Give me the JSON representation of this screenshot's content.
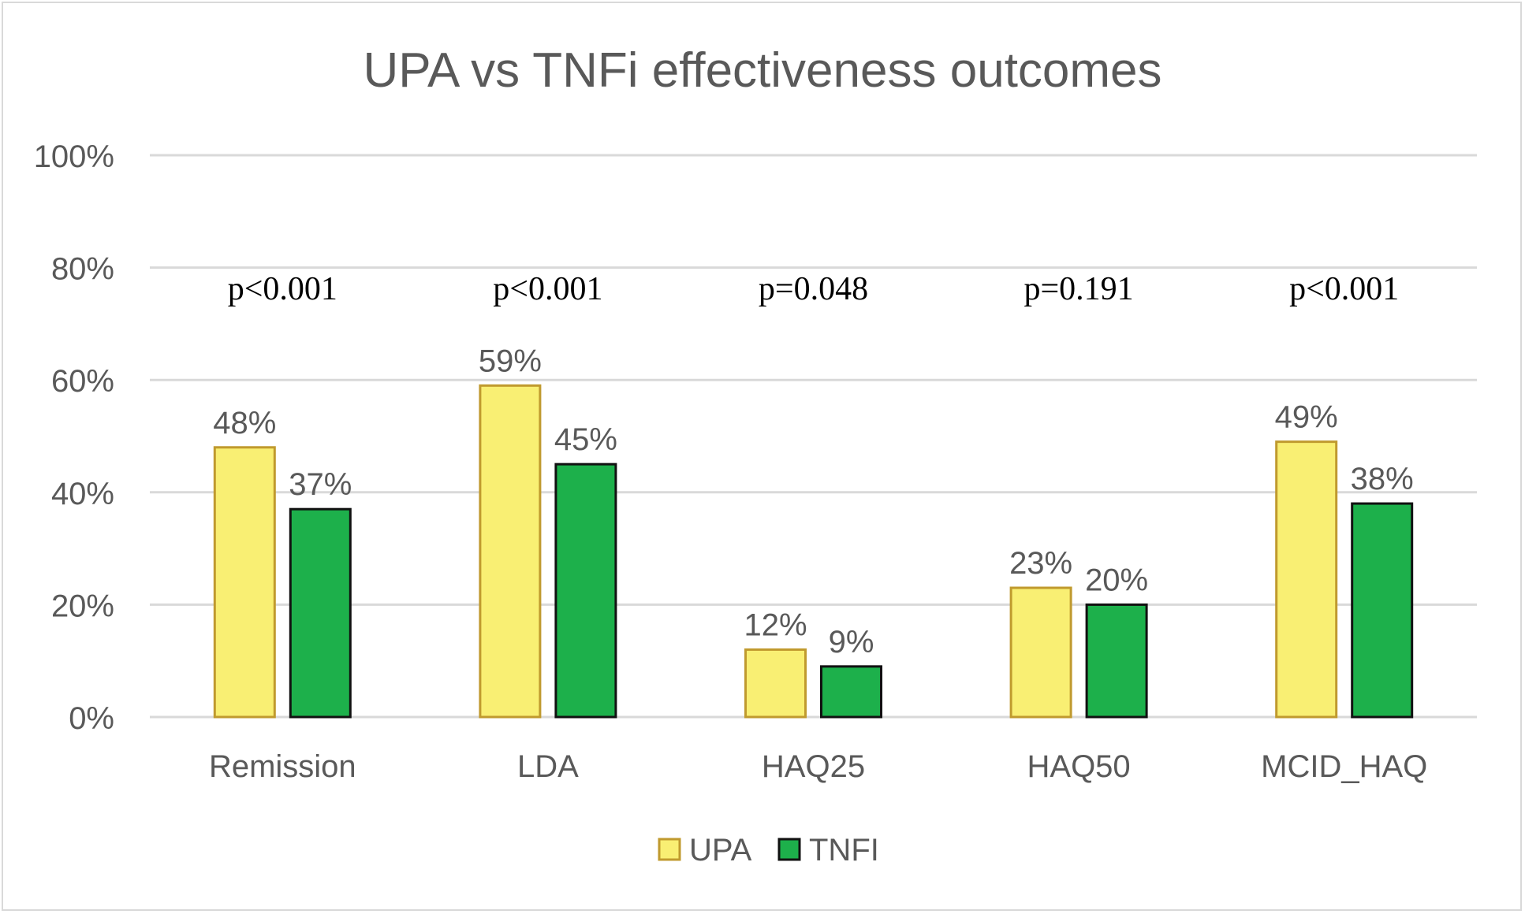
{
  "chart_data": {
    "type": "bar",
    "title": "UPA vs TNFi effectiveness outcomes",
    "xlabel": "",
    "ylabel": "",
    "categories": [
      "Remission",
      "LDA",
      "HAQ25",
      "HAQ50",
      "MCID_HAQ"
    ],
    "series": [
      {
        "name": "UPA",
        "values": [
          48,
          59,
          12,
          23,
          49
        ],
        "fill": "#f9ef73",
        "stroke": "#c09a2e"
      },
      {
        "name": "TNFI",
        "values": [
          37,
          45,
          9,
          20,
          38
        ],
        "fill": "#1db04b",
        "stroke": "#111111"
      }
    ],
    "data_labels": {
      "UPA": [
        "48%",
        "59%",
        "12%",
        "23%",
        "49%"
      ],
      "TNFI": [
        "37%",
        "45%",
        "9%",
        "20%",
        "38%"
      ]
    },
    "p_values": [
      "p<0.001",
      "p<0.001",
      "p=0.048",
      "p=0.191",
      "p<0.001"
    ],
    "ylim": [
      0,
      100
    ],
    "y_ticks": [
      "0%",
      "20%",
      "40%",
      "60%",
      "80%",
      "100%"
    ],
    "grid": true,
    "legend_position": "bottom-center",
    "colors": {
      "grid": "#d9d9d9",
      "text": "#595959",
      "pvalue": "#000000"
    }
  }
}
